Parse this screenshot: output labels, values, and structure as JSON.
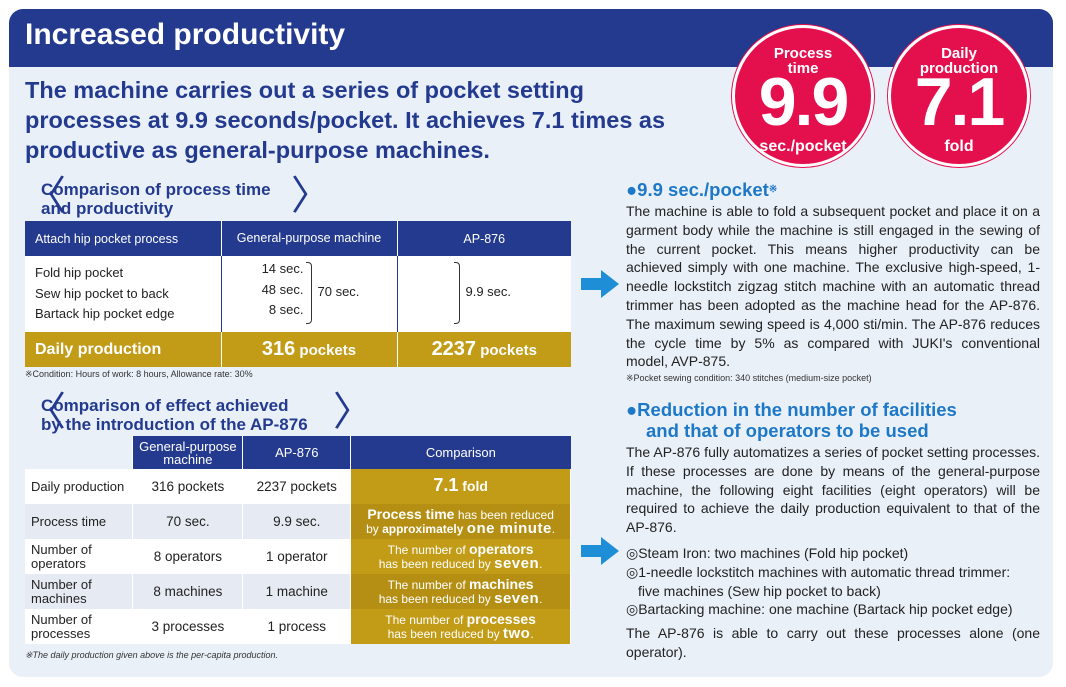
{
  "title": "Increased productivity",
  "lead": "The machine carries out a series of pocket setting processes at 9.9 seconds/pocket. It achieves 7.1 times as productive as general-purpose machines.",
  "badges": [
    {
      "label_top": "Process",
      "label_bottom": "time",
      "value": "9.9",
      "unit": "sec./pocket"
    },
    {
      "label_top": "Daily",
      "label_bottom": "production",
      "value": "7.1",
      "unit": "fold"
    }
  ],
  "table1": {
    "heading_line1": "Comparison of process time",
    "heading_line2": "and productivity",
    "col_process": "Attach hip pocket process",
    "col_general": "General-purpose machine",
    "col_ap": "AP-876",
    "rows": [
      {
        "name": "Fold hip pocket",
        "time": "14 sec."
      },
      {
        "name": "Sew hip pocket to back",
        "time": "48 sec."
      },
      {
        "name": "Bartack hip pocket edge",
        "time": "8 sec."
      }
    ],
    "general_total": "70 sec.",
    "ap_total": "9.9 sec.",
    "daily_label": "Daily production",
    "daily_general_num": "316",
    "daily_general_unit": " pockets",
    "daily_ap_num": "2237",
    "daily_ap_unit": " pockets",
    "condition": "※Condition: Hours of work: 8 hours, Allowance rate: 30%"
  },
  "table2": {
    "heading_line1": "Comparison of effect achieved",
    "heading_line2": "by the introduction of the AP-876",
    "col_general": "General-purpose machine",
    "col_ap": "AP-876",
    "col_cmp": "Comparison",
    "rows": [
      {
        "label": "Daily production",
        "general": "316 pockets",
        "ap": "2237 pockets"
      },
      {
        "label": "Process time",
        "general": "70 sec.",
        "ap": "9.9 sec."
      },
      {
        "label": "Number of operators",
        "general": "8 operators",
        "ap": "1 operator"
      },
      {
        "label": "Number of machines",
        "general": "8 machines",
        "ap": "1 machine"
      },
      {
        "label": "Number of processes",
        "general": "3 processes",
        "ap": "1 process"
      }
    ],
    "cmp_daily_num": "7.1",
    "cmp_daily_unit": " fold",
    "cmp_time_a": "Process time",
    "cmp_time_b": " has been reduced",
    "cmp_time_c": "by ",
    "cmp_time_d": "approximately ",
    "cmp_time_e": "one minute",
    "cmp_time_f": ".",
    "cmp_ops_a": "The number of ",
    "cmp_ops_b": "operators",
    "cmp_ops_c": "has been reduced by ",
    "cmp_ops_d": "seven",
    "cmp_ops_e": ".",
    "cmp_mach_a": "The number of ",
    "cmp_mach_b": "machines",
    "cmp_mach_c": "has been reduced by ",
    "cmp_mach_d": "seven",
    "cmp_mach_e": ".",
    "cmp_proc_a": "The number of ",
    "cmp_proc_b": "processes",
    "cmp_proc_c": "has been reduced by ",
    "cmp_proc_d": "two",
    "cmp_proc_e": ".",
    "footnote": "※The daily production given above is the per-capita production."
  },
  "right1": {
    "heading": "●9.9 sec./pocket",
    "heading_mark": "※",
    "body": "The machine is able to fold a subsequent pocket and place it on a garment body while the machine is still engaged in the sewing of the current pocket. This means higher productivity can be achieved simply with one machine. The exclusive high-speed, 1-needle lockstitch zigzag stitch machine with an automatic thread trimmer has been adopted as the machine head for the AP-876. The maximum sewing speed is 4,000 sti/min. The AP-876 reduces the cycle time by 5% as compared with JUKI's conventional model, AVP-875.",
    "note": "※Pocket sewing condition: 340 stitches (medium-size pocket)"
  },
  "right2": {
    "heading_line1": "●Reduction in the number of facilities",
    "heading_line2": "and that of operators to be used",
    "body": "The AP-876 fully automatizes a series of pocket setting processes. If these processes are done by means of the general-purpose machine, the following eight facilities (eight operators) will be required to achieve the daily production equivalent to that of the AP-876.",
    "items": [
      "◎Steam Iron: two machines (Fold hip pocket)",
      "◎1-needle lockstitch machines with automatic thread trimmer:",
      "five machines (Sew hip pocket to back)",
      "◎Bartacking machine: one machine (Bartack hip pocket edge)"
    ],
    "closing": "The AP-876 is able to carry out these processes alone (one operator)."
  },
  "colors": {
    "navy": "#233a8f",
    "gold": "#c29b17",
    "red": "#e4104e",
    "blue_accent": "#1e78c8"
  }
}
